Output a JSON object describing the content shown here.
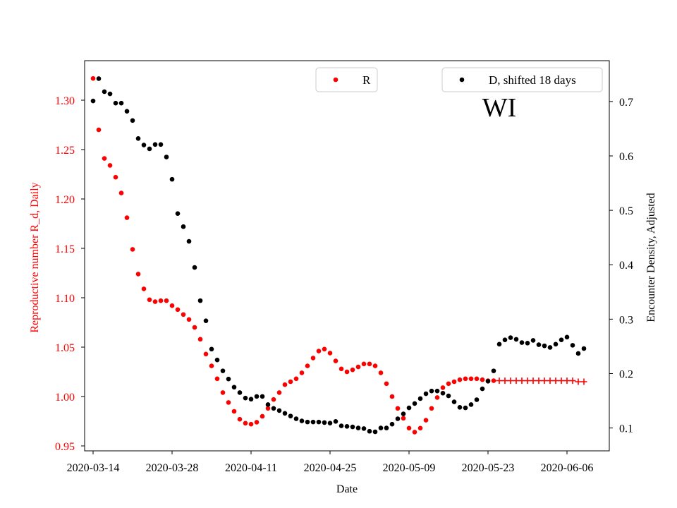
{
  "chart_data": {
    "type": "scatter",
    "xlabel": "Date",
    "ylabel_left": "Reproductive number R_d, Daily",
    "ylabel_right": "Encounter Density, Adjusted",
    "annotation": "WI",
    "x_ticks": [
      "2020-03-14",
      "2020-03-28",
      "2020-04-11",
      "2020-04-25",
      "2020-05-09",
      "2020-05-23",
      "2020-06-06"
    ],
    "x_range_days": [
      -1.5,
      91.5
    ],
    "ylim_left": [
      0.945,
      1.34
    ],
    "yticks_left": [
      "0.95",
      "1.00",
      "1.05",
      "1.10",
      "1.15",
      "1.20",
      "1.25",
      "1.30"
    ],
    "ylim_right": [
      0.058,
      0.775
    ],
    "yticks_right": [
      "0.1",
      "0.2",
      "0.3",
      "0.4",
      "0.5",
      "0.6",
      "0.7"
    ],
    "colors": {
      "R": "#ff0000",
      "D": "#000000",
      "axis": "#000000",
      "left_label": "#ff0000"
    },
    "legend": [
      {
        "label": "R",
        "marker": "dot",
        "color": "#ff0000",
        "placement": "top-center"
      },
      {
        "label": "D, shifted 18 days",
        "marker": "dot",
        "color": "#000000",
        "placement": "top-right"
      }
    ],
    "series": [
      {
        "name": "R",
        "axis": "left",
        "marker": "dot",
        "color": "#ff0000",
        "x_start_day": 0,
        "values": [
          1.322,
          1.27,
          1.241,
          1.234,
          1.222,
          1.206,
          1.181,
          1.149,
          1.124,
          1.109,
          1.098,
          1.096,
          1.097,
          1.097,
          1.092,
          1.088,
          1.083,
          1.078,
          1.07,
          1.058,
          1.043,
          1.031,
          1.018,
          1.004,
          0.994,
          0.985,
          0.977,
          0.973,
          0.972,
          0.974,
          0.98,
          0.988,
          0.997,
          1.004,
          1.012,
          1.015,
          1.018,
          1.024,
          1.031,
          1.039,
          1.046,
          1.048,
          1.044,
          1.036,
          1.028,
          1.025,
          1.027,
          1.03,
          1.033,
          1.033,
          1.031,
          1.024,
          1.013,
          1.0,
          0.988,
          0.978,
          0.968,
          0.964,
          0.968,
          0.976,
          0.988,
          0.999,
          1.009,
          1.013,
          1.015,
          1.017,
          1.018,
          1.018,
          1.018,
          1.017,
          1.016,
          1.016
        ]
      },
      {
        "name": "R forecast",
        "axis": "left",
        "marker": "plus",
        "color": "#ff0000",
        "x_start_day": 72,
        "values": [
          1.016,
          1.016,
          1.016,
          1.016,
          1.016,
          1.016,
          1.016,
          1.016,
          1.016,
          1.016,
          1.016,
          1.016,
          1.016,
          1.016,
          1.015,
          1.015
        ]
      },
      {
        "name": "D, shifted 18 days",
        "axis": "right",
        "marker": "dot",
        "color": "#000000",
        "x_start_day": 0,
        "values": [
          0.701,
          0.742,
          0.718,
          0.714,
          0.697,
          0.697,
          0.682,
          0.665,
          0.632,
          0.62,
          0.613,
          0.621,
          0.621,
          0.598,
          0.557,
          0.494,
          0.47,
          0.443,
          0.395,
          0.334,
          0.297,
          0.245,
          0.225,
          0.205,
          0.19,
          0.175,
          0.165,
          0.155,
          0.153,
          0.158,
          0.158,
          0.143,
          0.136,
          0.132,
          0.127,
          0.122,
          0.117,
          0.113,
          0.111,
          0.111,
          0.111,
          0.11,
          0.109,
          0.112,
          0.104,
          0.103,
          0.102,
          0.1,
          0.099,
          0.094,
          0.093,
          0.1,
          0.1,
          0.107,
          0.117,
          0.126,
          0.137,
          0.145,
          0.154,
          0.163,
          0.168,
          0.168,
          0.164,
          0.159,
          0.148,
          0.138,
          0.137,
          0.143,
          0.152,
          0.172,
          0.186,
          0.205,
          0.254,
          0.262,
          0.266,
          0.263,
          0.257,
          0.256,
          0.261,
          0.253,
          0.251,
          0.248,
          0.254,
          0.262,
          0.267,
          0.252,
          0.237,
          0.246
        ]
      }
    ]
  }
}
